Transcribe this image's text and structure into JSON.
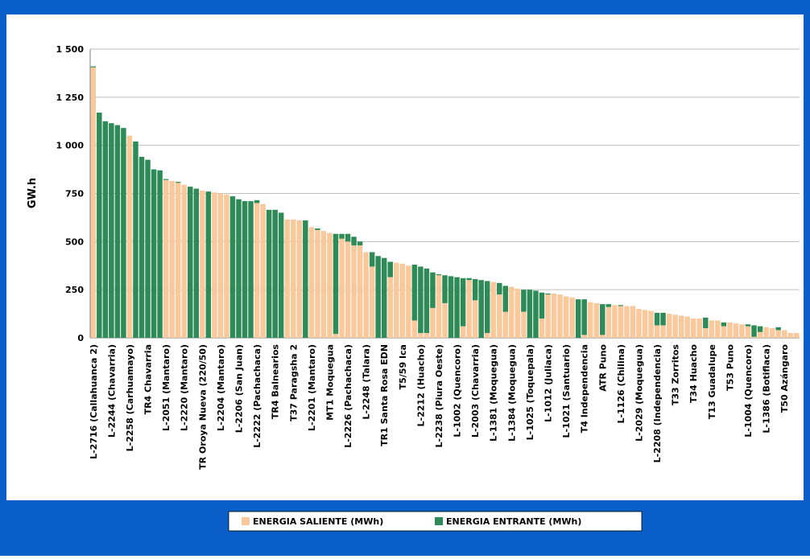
{
  "chart_data": {
    "type": "stacked-bar",
    "y_label": "GW.h",
    "categories": [
      "L-2716 (Callahuanca 2)",
      null,
      null,
      "L-2244 (Chavarria)",
      null,
      null,
      "L-2258 (Carhuamayo)",
      null,
      null,
      "TR4 Chavarria",
      null,
      null,
      "L-2051 (Mantaro)",
      null,
      null,
      "L-2220 (Mantaro)",
      null,
      null,
      "TR Oroya Nueva (220/50)",
      null,
      null,
      "L-2204 (Mantaro)",
      null,
      null,
      "L-2206 (San Juan)",
      null,
      null,
      "L-2222 (Pachachaca)",
      null,
      null,
      "TR4 Balnearios",
      null,
      null,
      "T37 Paragsha 2",
      null,
      null,
      "L-2201 (Mantaro)",
      null,
      null,
      "MT1 Moquegua",
      null,
      null,
      "L-2226 (Pachachaca)",
      null,
      null,
      "L-2248 (Talara)",
      null,
      null,
      "TR1 Santa Rosa EDN",
      null,
      null,
      "T5/59 Ica",
      null,
      null,
      "L-2212 (Huacho)",
      null,
      null,
      "L-2238 (Piura Oeste)",
      null,
      null,
      "L-1002 (Quencoro)",
      null,
      null,
      "L-2003 (Chavarria)",
      null,
      null,
      "L-1381 (Moquegua)",
      null,
      null,
      "L-1384 (Moquegua)",
      null,
      null,
      "L-1025 (Toquepala)",
      null,
      null,
      "L-1012 (Juliaca)",
      null,
      null,
      "L-1021 (Santuario)",
      null,
      null,
      "T4 Independencia",
      null,
      null,
      "ATR Puno",
      null,
      null,
      "L-1126 (Chilina)",
      null,
      null,
      "L-2029 (Moquegua)",
      null,
      null,
      "L-2208 (Independencia)",
      null,
      null,
      "T33 Zorritos",
      null,
      null,
      "T34 Huacho",
      null,
      null,
      "T13 Guadalupe",
      null,
      null,
      "T53 Puno",
      null,
      null,
      "L-1004 (Quencoro)",
      null,
      null,
      "L-1386 (Botiflaca)",
      null,
      null,
      "T50 Azángaro",
      null,
      null
    ],
    "series": [
      {
        "name": "ENERGIA SALIENTE (MWh)",
        "color": "#f9c99c",
        "values": [
          1405,
          0,
          0,
          0,
          0,
          0,
          1050,
          0,
          0,
          0,
          0,
          0,
          820,
          815,
          805,
          795,
          0,
          0,
          765,
          0,
          755,
          750,
          745,
          0,
          0,
          0,
          0,
          700,
          695,
          0,
          0,
          0,
          615,
          615,
          610,
          0,
          575,
          560,
          555,
          545,
          20,
          515,
          500,
          480,
          480,
          445,
          370,
          0,
          0,
          315,
          390,
          385,
          375,
          90,
          25,
          25,
          155,
          325,
          180,
          0,
          0,
          60,
          300,
          195,
          0,
          25,
          290,
          225,
          135,
          265,
          255,
          135,
          0,
          0,
          100,
          225,
          230,
          225,
          215,
          210,
          0,
          15,
          185,
          180,
          15,
          160,
          170,
          165,
          165,
          165,
          150,
          145,
          140,
          65,
          65,
          125,
          120,
          115,
          110,
          100,
          100,
          50,
          90,
          90,
          60,
          80,
          75,
          70,
          60,
          5,
          30,
          55,
          50,
          40,
          40,
          25,
          25
        ]
      },
      {
        "name": "ENERGIA ENTRANTE (MWh)",
        "color": "#2e8b57",
        "values": [
          5,
          1170,
          1125,
          1115,
          1105,
          1090,
          0,
          1020,
          940,
          925,
          875,
          870,
          5,
          0,
          5,
          0,
          785,
          775,
          0,
          760,
          0,
          0,
          0,
          735,
          720,
          710,
          710,
          15,
          0,
          665,
          665,
          650,
          0,
          0,
          0,
          610,
          0,
          8,
          0,
          0,
          520,
          25,
          40,
          45,
          20,
          0,
          75,
          425,
          415,
          80,
          0,
          0,
          0,
          290,
          345,
          335,
          185,
          5,
          145,
          320,
          315,
          250,
          10,
          110,
          300,
          270,
          0,
          60,
          135,
          0,
          0,
          115,
          250,
          245,
          135,
          5,
          0,
          0,
          0,
          0,
          200,
          185,
          0,
          0,
          160,
          15,
          0,
          5,
          0,
          0,
          0,
          0,
          0,
          65,
          65,
          0,
          0,
          0,
          0,
          0,
          0,
          55,
          0,
          0,
          20,
          0,
          0,
          0,
          10,
          60,
          30,
          0,
          0,
          15,
          0,
          0,
          0
        ]
      }
    ],
    "ylim": [
      0,
      1500
    ],
    "yticks": [
      0,
      250,
      500,
      750,
      {
        "value": 1000,
        "label": "1 000"
      },
      {
        "value": 1250,
        "label": "1 250"
      },
      {
        "value": 1500,
        "label": "1 500"
      }
    ],
    "grid": true,
    "legend": "bottom"
  }
}
